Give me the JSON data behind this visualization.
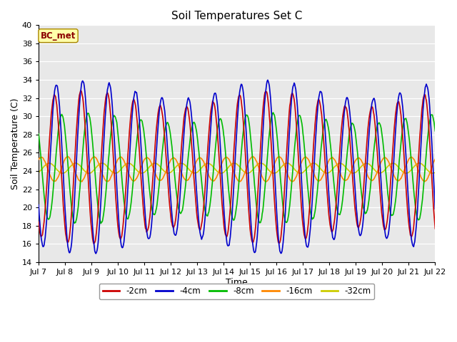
{
  "title": "Soil Temperatures Set C",
  "xlabel": "Time",
  "ylabel": "Soil Temperature (C)",
  "ylim": [
    14,
    40
  ],
  "annotation": "BC_met",
  "plot_bg": "#e8e8e8",
  "fig_bg": "#ffffff",
  "series": {
    "-2cm": {
      "color": "#cc0000",
      "lw": 1.2
    },
    "-4cm": {
      "color": "#0000cc",
      "lw": 1.2
    },
    "-8cm": {
      "color": "#00bb00",
      "lw": 1.2
    },
    "-16cm": {
      "color": "#ff8800",
      "lw": 1.2
    },
    "-32cm": {
      "color": "#cccc00",
      "lw": 1.2
    }
  },
  "xtick_labels": [
    "Jul 7",
    "Jul 8",
    "Jul 9",
    "Jul 10",
    "Jul 11",
    "Jul 12",
    "Jul 13",
    "Jul 14",
    "Jul 15",
    "Jul 16",
    "Jul 17",
    "Jul 18",
    "Jul 19",
    "Jul 20",
    "Jul 21",
    "Jul 22"
  ],
  "num_days": 15,
  "pts_per_day": 48,
  "mean": 24.2,
  "amp_2cm": 7.5,
  "amp_4cm": 8.5,
  "amp_8cm": 5.5,
  "amp_16cm": 1.3,
  "amp_32cm": 0.55,
  "phase_2cm": 0.35,
  "phase_4cm": 0.42,
  "phase_8cm": 0.62,
  "phase_16cm": 0.85,
  "phase_32cm": 1.15
}
